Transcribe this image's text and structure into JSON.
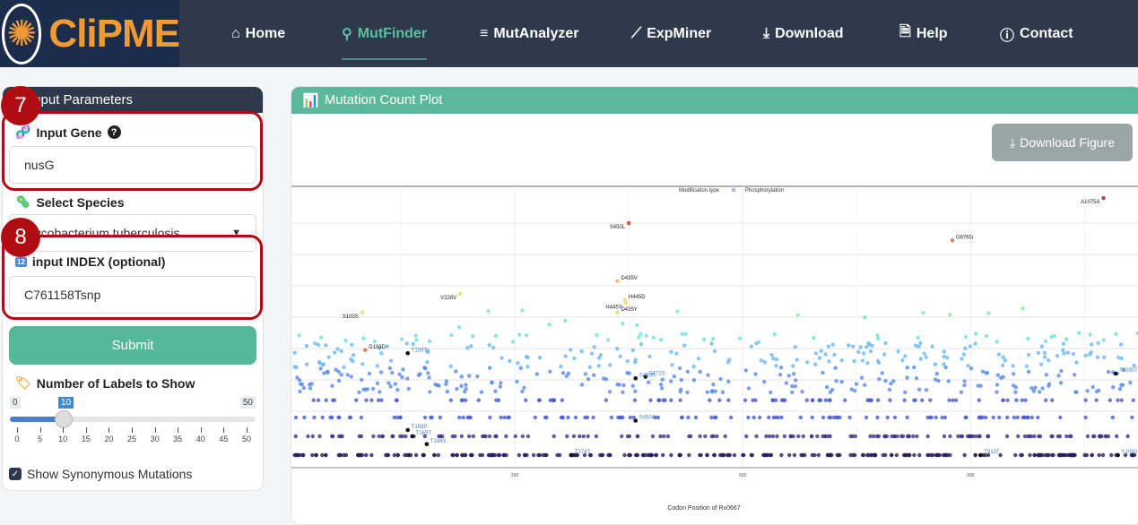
{
  "nav": {
    "logo": "CliPME",
    "items": [
      {
        "label": "Home",
        "icon": "home-icon"
      },
      {
        "label": "MutFinder",
        "icon": "search-icon",
        "active": true
      },
      {
        "label": "MutAnalyzer",
        "icon": "bar-chart-icon"
      },
      {
        "label": "ExpMiner",
        "icon": "line-chart-icon"
      },
      {
        "label": "Download",
        "icon": "download-icon"
      },
      {
        "label": "Help",
        "icon": "document-icon"
      },
      {
        "label": "Contact",
        "icon": "info-icon"
      }
    ]
  },
  "sidebar": {
    "title": "Input Parameters",
    "gene_label": "Input Gene",
    "gene_value": "nusG",
    "species_label": "Select Species",
    "species_value": "Mycobacterium tuberculosis",
    "index_label": "input INDEX (optional)",
    "index_value": "C761158Tsnp",
    "submit": "Submit",
    "labels_title": "Number of Labels to Show",
    "slider": {
      "min": "0",
      "max": "50",
      "value": "10",
      "ticks": [
        "0",
        "5",
        "10",
        "15",
        "20",
        "25",
        "30",
        "35",
        "40",
        "45",
        "50"
      ]
    },
    "synonymous_label": "Show Synonymous Mutations",
    "synonymous_checked": true
  },
  "annotations": [
    "7",
    "8"
  ],
  "plot": {
    "title": "Mutation Count Plot",
    "download": "Download Figure",
    "legend_title": "Modification type",
    "legend_item": "Phosphorylation",
    "legend_color": "#9ec5e8",
    "xlabel": "Codon Position of Rv0667",
    "xticks": [
      "300",
      "600",
      "900"
    ],
    "labels": [
      {
        "t": "D103D",
        "x": 103,
        "y": 3.35,
        "c": "#e8825a"
      },
      {
        "t": "S450L",
        "x": 450,
        "y": 7.4,
        "c": "#cf5a4a"
      },
      {
        "t": "G876G",
        "x": 876,
        "y": 6.85,
        "c": "#e8885a"
      },
      {
        "t": "A1075A",
        "x": 1075,
        "y": 8.2,
        "c": "#b5504a"
      },
      {
        "t": "D435V",
        "x": 435,
        "y": 5.55,
        "c": "#f1c27a"
      },
      {
        "t": "V228V",
        "x": 228,
        "y": 5.15,
        "c": "#f0df7e"
      },
      {
        "t": "H445D",
        "x": 445,
        "y": 4.95,
        "c": "#ece38a"
      },
      {
        "t": "H445Y",
        "x": 446,
        "y": 4.85,
        "c": "#ece38a"
      },
      {
        "t": "D435Y",
        "x": 435,
        "y": 4.55,
        "c": "#d8ec80"
      },
      {
        "t": "S100S",
        "x": 99,
        "y": 4.55,
        "c": "#d8ec80"
      },
      {
        "t": "T159T",
        "x": 159,
        "y": 3.25,
        "c": "#111"
      },
      {
        "t": "S472S",
        "x": 472,
        "y": 2.5,
        "c": "#111"
      },
      {
        "t": "S450S",
        "x": 459,
        "y": 2.45,
        "c": "#111"
      },
      {
        "t": "T1090T",
        "x": 1091,
        "y": 2.6,
        "c": "#111"
      },
      {
        "t": "S450A",
        "x": 459,
        "y": 1.1,
        "c": "#111"
      },
      {
        "t": "T159P",
        "x": 159,
        "y": 0.8,
        "c": "#111"
      },
      {
        "t": "T165T",
        "x": 165,
        "y": 0.6,
        "c": "#111"
      },
      {
        "t": "T184S",
        "x": 184,
        "y": 0.35,
        "c": "#111"
      },
      {
        "t": "T374T",
        "x": 374,
        "y": 0.0,
        "c": "#111"
      },
      {
        "t": "T913T",
        "x": 913,
        "y": 0.0,
        "c": "#111"
      },
      {
        "t": "Y1090",
        "x": 1094,
        "y": 0.0,
        "c": "#111"
      }
    ]
  }
}
